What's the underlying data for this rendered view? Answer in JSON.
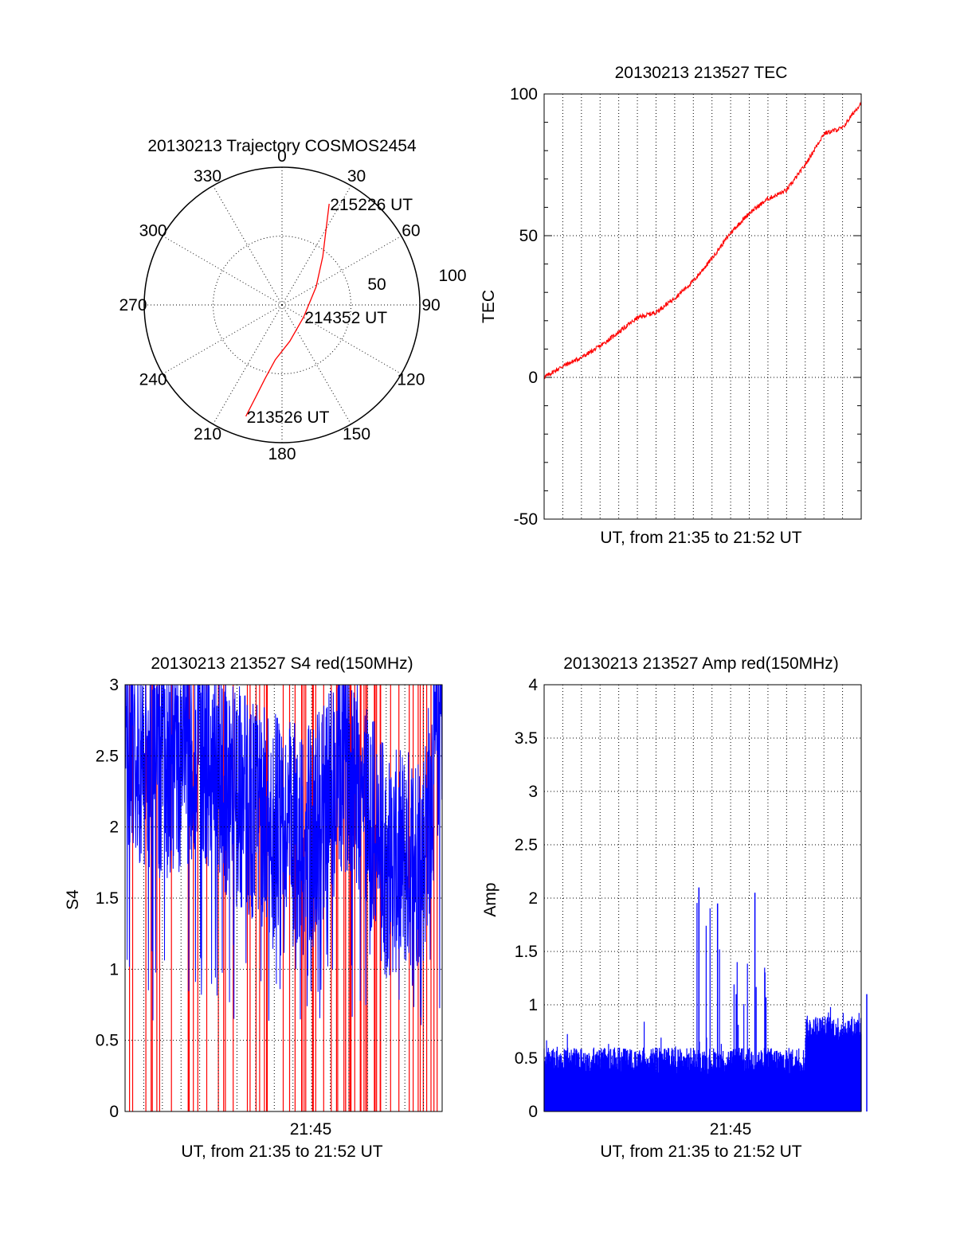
{
  "chart_data": [
    {
      "type": "polar",
      "title": "20130213 Trajectory COSMOS2454",
      "angle_labels": [
        "0",
        "30",
        "60",
        "90",
        "120",
        "150",
        "180",
        "210",
        "240",
        "270",
        "300",
        "330"
      ],
      "radius_labels": [
        "50",
        "100"
      ],
      "rlim": [
        0,
        100
      ],
      "grid": true,
      "series": [
        {
          "color": "#ff0000",
          "points": [
            {
              "az": 198,
              "r": 85
            },
            {
              "az": 196,
              "r": 70
            },
            {
              "az": 193,
              "r": 55
            },
            {
              "az": 187,
              "r": 40
            },
            {
              "az": 168,
              "r": 27
            },
            {
              "az": 119,
              "r": 18
            },
            {
              "az": 62,
              "r": 28
            },
            {
              "az": 40,
              "r": 46
            },
            {
              "az": 30,
              "r": 64
            },
            {
              "az": 25,
              "r": 81
            }
          ]
        }
      ],
      "annotations": [
        {
          "text": "215226 UT",
          "az": 25,
          "r": 81
        },
        {
          "text": "214352 UT",
          "az": 119,
          "r": 18
        },
        {
          "text": "213526 UT",
          "az": 198,
          "r": 85
        }
      ]
    },
    {
      "type": "line",
      "title": "20130213 213527 TEC",
      "xlabel": "UT, from 21:35 to 21:52 UT",
      "ylabel": "TEC",
      "xlim": [
        "21:35",
        "21:52"
      ],
      "ylim": [
        -50,
        100
      ],
      "yticks": [
        "100",
        "50",
        "0",
        "-50"
      ],
      "grid": true,
      "series": [
        {
          "color": "#ff0000",
          "x": [
            "21:35",
            "21:36",
            "21:37",
            "21:38",
            "21:39",
            "21:40",
            "21:41",
            "21:42",
            "21:43",
            "21:44",
            "21:45",
            "21:46",
            "21:47",
            "21:48",
            "21:49",
            "21:50",
            "21:51",
            "21:52"
          ],
          "values": [
            0,
            4,
            7,
            11,
            16,
            21,
            23,
            28,
            34,
            42,
            51,
            58,
            63,
            66,
            75,
            86,
            88,
            97
          ]
        }
      ]
    },
    {
      "type": "line",
      "title": "20130213 213527 S4 red(150MHz)",
      "xlabel": "UT, from 21:35 to 21:52 UT",
      "ylabel": "S4",
      "xlim": [
        "21:35",
        "21:52"
      ],
      "ylim": [
        0,
        3
      ],
      "xticks": [
        "21:45"
      ],
      "yticks": [
        "3",
        "2.5",
        "2",
        "1.5",
        "1",
        "0.5",
        "0"
      ],
      "grid": true,
      "series": [
        {
          "color": "#ff0000",
          "description_values": "spikes 0 to 3"
        },
        {
          "color": "#0000ff",
          "x": [
            "21:35",
            "21:37",
            "21:39",
            "21:41",
            "21:43",
            "21:45",
            "21:47",
            "21:49",
            "21:51",
            "21:52"
          ],
          "values": [
            2.3,
            2.1,
            2.2,
            1.9,
            1.7,
            1.6,
            2.2,
            1.4,
            1.5,
            2.6
          ]
        }
      ]
    },
    {
      "type": "bar",
      "title": "20130213 213527 Amp red(150MHz)",
      "xlabel": "UT, from 21:35 to 21:52 UT",
      "ylabel": "Amp",
      "xlim": [
        "21:35",
        "21:52"
      ],
      "ylim": [
        0,
        4
      ],
      "xticks": [
        "21:45"
      ],
      "yticks": [
        "4",
        "3.5",
        "3",
        "2.5",
        "2",
        "1.5",
        "1",
        "0.5",
        "0"
      ],
      "grid": true,
      "series": [
        {
          "color": "#0000ff",
          "x": [
            "21:35",
            "21:37",
            "21:39",
            "21:40",
            "21:42",
            "21:43",
            "21:44",
            "21:45",
            "21:46",
            "21:48",
            "21:49",
            "21:50",
            "21:51",
            "21:52"
          ],
          "values": [
            0.6,
            0.55,
            0.55,
            0.9,
            0.6,
            2.1,
            1.95,
            1.1,
            2.05,
            0.55,
            0.55,
            0.9,
            0.95,
            1.1
          ]
        }
      ]
    }
  ]
}
